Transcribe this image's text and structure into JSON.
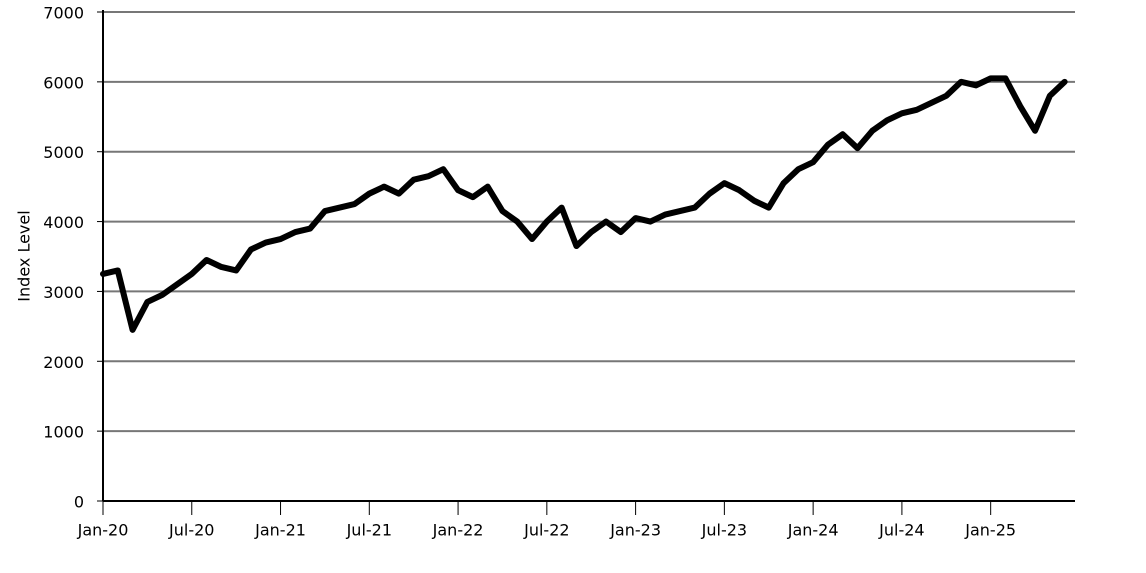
{
  "chart_data": {
    "type": "line",
    "y_label": "Index Level",
    "x": [
      "2020-01",
      "2020-02",
      "2020-03",
      "2020-04",
      "2020-05",
      "2020-06",
      "2020-07",
      "2020-08",
      "2020-09",
      "2020-10",
      "2020-11",
      "2020-12",
      "2021-01",
      "2021-02",
      "2021-03",
      "2021-04",
      "2021-05",
      "2021-06",
      "2021-07",
      "2021-08",
      "2021-09",
      "2021-10",
      "2021-11",
      "2021-12",
      "2022-01",
      "2022-02",
      "2022-03",
      "2022-04",
      "2022-05",
      "2022-06",
      "2022-07",
      "2022-08",
      "2022-09",
      "2022-10",
      "2022-11",
      "2022-12",
      "2023-01",
      "2023-02",
      "2023-03",
      "2023-04",
      "2023-05",
      "2023-06",
      "2023-07",
      "2023-08",
      "2023-09",
      "2023-10",
      "2023-11",
      "2023-12",
      "2024-01",
      "2024-02",
      "2024-03",
      "2024-04",
      "2024-05",
      "2024-06",
      "2024-07",
      "2024-08",
      "2024-09",
      "2024-10",
      "2024-11",
      "2024-12",
      "2025-01",
      "2025-02",
      "2025-03",
      "2025-04",
      "2025-05",
      "2025-06"
    ],
    "series": [
      {
        "color": "#000000",
        "values": [
          3250,
          3300,
          2450,
          2850,
          2950,
          3100,
          3250,
          3450,
          3350,
          3300,
          3600,
          3700,
          3750,
          3850,
          3900,
          4150,
          4200,
          4250,
          4400,
          4500,
          4400,
          4600,
          4650,
          4750,
          4450,
          4350,
          4500,
          4150,
          4000,
          3750,
          4000,
          4200,
          3650,
          3850,
          4000,
          3850,
          4050,
          4000,
          4100,
          4150,
          4200,
          4400,
          4550,
          4450,
          4300,
          4200,
          4550,
          4750,
          4850,
          5100,
          5250,
          5050,
          5300,
          5450,
          5550,
          5600,
          5700,
          5800,
          6000,
          5950,
          6050,
          6050,
          5650,
          5300,
          5800,
          6000
        ]
      }
    ],
    "xlim": [
      "2020-01",
      "2025-06"
    ],
    "xticks": [
      {
        "value": "2020-01",
        "label": "Jan-20"
      },
      {
        "value": "2020-07",
        "label": "Jul-20"
      },
      {
        "value": "2021-01",
        "label": "Jan-21"
      },
      {
        "value": "2021-07",
        "label": "Jul-21"
      },
      {
        "value": "2022-01",
        "label": "Jan-22"
      },
      {
        "value": "2022-07",
        "label": "Jul-22"
      },
      {
        "value": "2023-01",
        "label": "Jan-23"
      },
      {
        "value": "2023-07",
        "label": "Jul-23"
      },
      {
        "value": "2024-01",
        "label": "Jan-24"
      },
      {
        "value": "2024-07",
        "label": "Jul-24"
      },
      {
        "value": "2025-01",
        "label": "Jan-25"
      }
    ],
    "ylim": [
      0,
      7000
    ],
    "yticks": [
      0,
      1000,
      2000,
      3000,
      4000,
      5000,
      6000,
      7000
    ],
    "grid": true
  }
}
